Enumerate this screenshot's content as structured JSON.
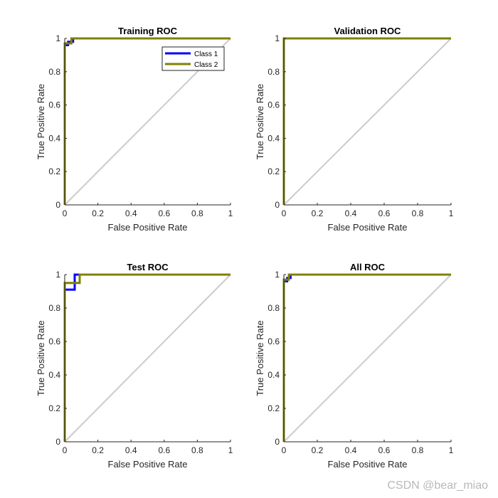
{
  "watermark": "CSDN @bear_miao",
  "colors": {
    "class1": "#0000ff",
    "class2": "#808000",
    "diagonal": "#cccccc",
    "axis": "#262626"
  },
  "chart_data": [
    {
      "type": "line",
      "title": "Training ROC",
      "xlabel": "False Positive Rate",
      "ylabel": "True Positive Rate",
      "xlim": [
        0,
        1
      ],
      "ylim": [
        0,
        1
      ],
      "xticks": [
        "0",
        "0.2",
        "0.4",
        "0.6",
        "0.8",
        "1"
      ],
      "yticks": [
        "0",
        "0.2",
        "0.4",
        "0.6",
        "0.8",
        "1"
      ],
      "legend": {
        "position": "top-right",
        "entries": [
          "Class 1",
          "Class 2"
        ]
      },
      "series": [
        {
          "name": "Class 1",
          "x": [
            0,
            0,
            0.02,
            0.02,
            0.05,
            0.05,
            1
          ],
          "y": [
            0,
            0.96,
            0.96,
            0.98,
            0.98,
            1,
            1
          ]
        },
        {
          "name": "Class 2",
          "x": [
            0,
            0,
            0.04,
            0.04,
            1
          ],
          "y": [
            0,
            0.97,
            0.97,
            1,
            1
          ]
        }
      ]
    },
    {
      "type": "line",
      "title": "Validation ROC",
      "xlabel": "False Positive Rate",
      "ylabel": "True Positive Rate",
      "xlim": [
        0,
        1
      ],
      "ylim": [
        0,
        1
      ],
      "xticks": [
        "0",
        "0.2",
        "0.4",
        "0.6",
        "0.8",
        "1"
      ],
      "yticks": [
        "0",
        "0.2",
        "0.4",
        "0.6",
        "0.8",
        "1"
      ],
      "series": [
        {
          "name": "Class 1",
          "x": [
            0,
            0,
            1
          ],
          "y": [
            0,
            1,
            1
          ]
        },
        {
          "name": "Class 2",
          "x": [
            0,
            0,
            1
          ],
          "y": [
            0,
            1,
            1
          ]
        }
      ]
    },
    {
      "type": "line",
      "title": "Test ROC",
      "xlabel": "False Positive Rate",
      "ylabel": "True Positive Rate",
      "xlim": [
        0,
        1
      ],
      "ylim": [
        0,
        1
      ],
      "xticks": [
        "0",
        "0.2",
        "0.4",
        "0.6",
        "0.8",
        "1"
      ],
      "yticks": [
        "0",
        "0.2",
        "0.4",
        "0.6",
        "0.8",
        "1"
      ],
      "series": [
        {
          "name": "Class 1",
          "x": [
            0,
            0,
            0.06,
            0.06,
            1
          ],
          "y": [
            0,
            0.91,
            0.91,
            1,
            1
          ]
        },
        {
          "name": "Class 2",
          "x": [
            0,
            0,
            0.09,
            0.09,
            1
          ],
          "y": [
            0,
            0.95,
            0.95,
            1,
            1
          ]
        }
      ]
    },
    {
      "type": "line",
      "title": "All ROC",
      "xlabel": "False Positive Rate",
      "ylabel": "True Positive Rate",
      "xlim": [
        0,
        1
      ],
      "ylim": [
        0,
        1
      ],
      "xticks": [
        "0",
        "0.2",
        "0.4",
        "0.6",
        "0.8",
        "1"
      ],
      "yticks": [
        "0",
        "0.2",
        "0.4",
        "0.6",
        "0.8",
        "1"
      ],
      "series": [
        {
          "name": "Class 1",
          "x": [
            0,
            0,
            0.02,
            0.02,
            0.04,
            0.04,
            1
          ],
          "y": [
            0,
            0.96,
            0.96,
            0.98,
            0.98,
            1,
            1
          ]
        },
        {
          "name": "Class 2",
          "x": [
            0,
            0,
            0.03,
            0.03,
            1
          ],
          "y": [
            0,
            0.97,
            0.97,
            1,
            1
          ]
        }
      ]
    }
  ]
}
